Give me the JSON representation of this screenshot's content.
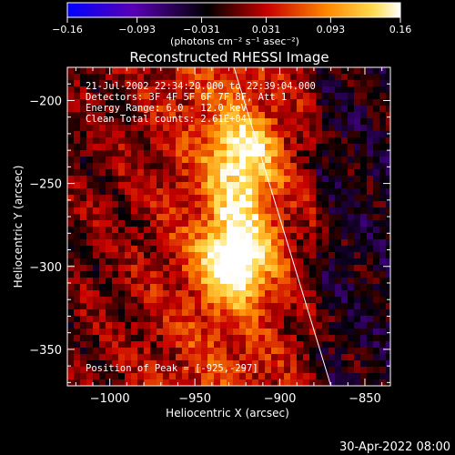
{
  "colorbar": {
    "ticks": [
      "-0.16",
      "-0.093",
      "-0.031",
      "0.031",
      "0.093",
      "0.16"
    ],
    "tick_values": [
      -0.16,
      -0.093,
      -0.031,
      0.031,
      0.093,
      0.16
    ],
    "range": [
      -0.16,
      0.16
    ],
    "unit_label": "(photons cm⁻² s⁻¹ asec⁻²)"
  },
  "image": {
    "title": "Reconstructed RHESSI Image",
    "info_lines": [
      "21-Jul-2002 22:34:20.000 to 22:39:04.000",
      "Detectors: 3F 4F 5F 6F 7F 8F, Att 1",
      "Energy Range: 6.0 - 12.0 keV",
      "Clean    Total counts: 2.61E+04"
    ],
    "peak_label": "Position of Peak = [-925,-297]"
  },
  "chart_data": {
    "type": "heatmap",
    "title": "Reconstructed RHESSI Image",
    "xlabel": "Heliocentric X (arcsec)",
    "ylabel": "Heliocentric Y (arcsec)",
    "xlim": [
      -1025,
      -835
    ],
    "ylim": [
      -372,
      -180
    ],
    "xticks": [
      -1000,
      -950,
      -900,
      -850
    ],
    "yticks": [
      -200,
      -250,
      -300,
      -350
    ],
    "xtick_labels": [
      "−1000",
      "−950",
      "−900",
      "−850"
    ],
    "ytick_labels": [
      "−200",
      "−250",
      "−300",
      "−350"
    ],
    "peak": [
      -925,
      -297
    ],
    "peak_value": 0.16,
    "sources": [
      {
        "x": -925,
        "y": -297,
        "amplitude": 0.16
      },
      {
        "x": -921,
        "y": -230,
        "amplitude": 0.11
      },
      {
        "x": -922,
        "y": -262,
        "amplitude": 0.07
      }
    ],
    "limb_line": [
      [
        -927,
        -180
      ],
      [
        -870,
        -372
      ]
    ],
    "colormap": [
      "#0000ff",
      "#5a00b4",
      "#000000",
      "#c80000",
      "#ff8800",
      "#ffdc50",
      "#ffffff"
    ]
  },
  "footer": {
    "timestamp": "30-Apr-2022 08:00"
  }
}
